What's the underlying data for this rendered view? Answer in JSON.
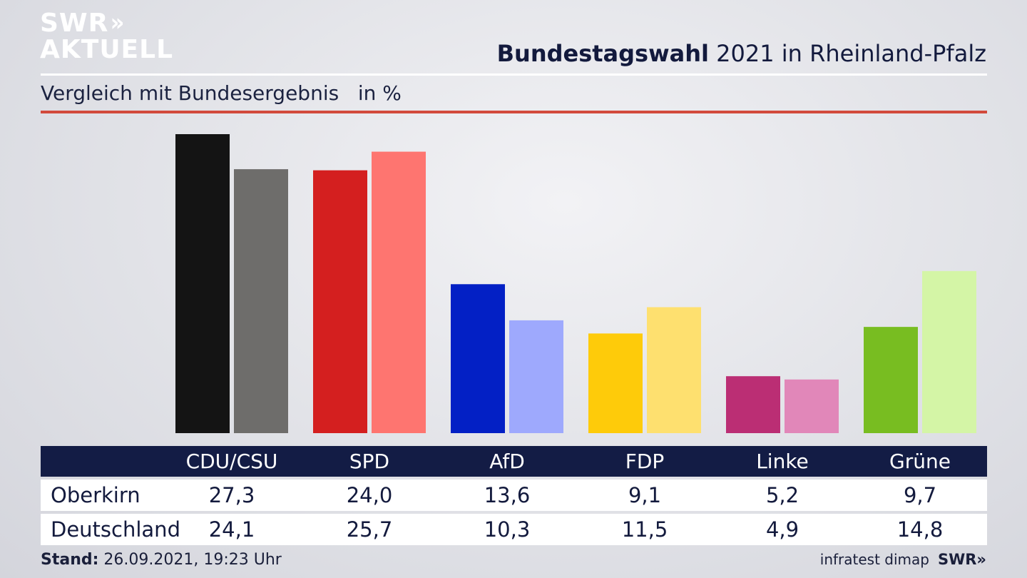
{
  "logo": {
    "line1": "SWR",
    "arrows": "»",
    "line2": "AKTUELL"
  },
  "title": {
    "bold": "Bundestagswahl",
    "rest": " 2021 in Rheinland-Pfalz"
  },
  "subtitle": "Vergleich mit Bundesergebnis   in %",
  "table": {
    "rows": [
      {
        "label": "Oberkirn"
      },
      {
        "label": "Deutschland"
      }
    ]
  },
  "footer": {
    "stand_label": "Stand:",
    "stand_value": " 26.09.2021, 19:23 Uhr",
    "source": "infratest dimap",
    "brand": "SWR»"
  },
  "colors": {
    "title_text": "#131a3d",
    "table_header_bg": "#131c45",
    "accent_red_rule": "#d24a3c"
  },
  "chart_data": {
    "type": "bar",
    "categories": [
      "CDU/CSU",
      "SPD",
      "AfD",
      "FDP",
      "Linke",
      "Grüne"
    ],
    "series": [
      {
        "name": "Oberkirn",
        "values": [
          27.3,
          24.0,
          13.6,
          9.1,
          5.2,
          9.7
        ],
        "display": [
          "27,3",
          "24,0",
          "13,6",
          "9,1",
          "5,2",
          "9,7"
        ],
        "colors": [
          "#141414",
          "#d41f1f",
          "#0320c5",
          "#fecb0a",
          "#bb2e74",
          "#78bd21"
        ]
      },
      {
        "name": "Deutschland",
        "values": [
          24.1,
          25.7,
          10.3,
          11.5,
          4.9,
          14.8
        ],
        "display": [
          "24,1",
          "25,7",
          "10,3",
          "11,5",
          "4,9",
          "14,8"
        ],
        "colors": [
          "#6e6d6b",
          "#fe7570",
          "#9ea9fd",
          "#fee06f",
          "#e187b9",
          "#d4f5a6"
        ]
      }
    ],
    "title": "Bundestagswahl 2021 in Rheinland-Pfalz",
    "subtitle": "Vergleich mit Bundesergebnis   in %",
    "ylim": [
      0,
      27.3
    ],
    "grid": false,
    "legend": "table-below"
  }
}
